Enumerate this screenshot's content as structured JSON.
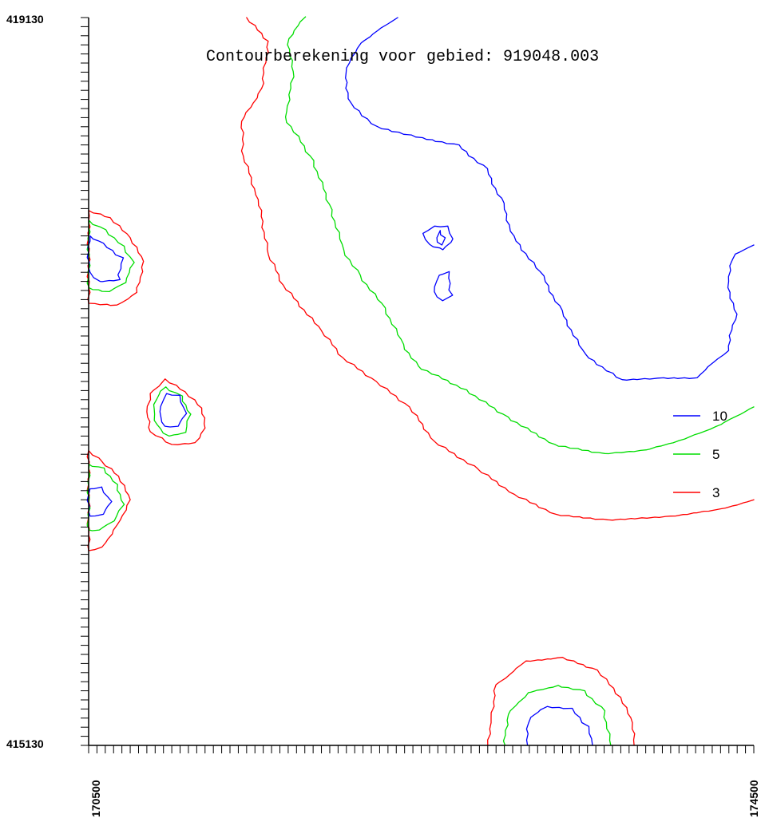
{
  "chart_data": {
    "type": "contour",
    "title": "Contourberekening voor gebied: 919048.003",
    "x_axis": {
      "min": 170500,
      "max": 174500,
      "tick_labels": [
        "170500",
        "174500"
      ],
      "minor_tick_step": 50
    },
    "y_axis": {
      "min": 415130,
      "max": 419130,
      "tick_labels": [
        "419130",
        "415130"
      ],
      "minor_tick_step": 50
    },
    "legend_position": "right",
    "levels": [
      {
        "value": "10",
        "color": "#0000ff"
      },
      {
        "value": "5",
        "color": "#00dd00"
      },
      {
        "value": "3",
        "color": "#ff0000"
      }
    ],
    "contours": [
      {
        "level": "3",
        "closed": false,
        "points": [
          [
            171450,
            419130
          ],
          [
            171580,
            419000
          ],
          [
            171540,
            418740
          ],
          [
            171420,
            418560
          ],
          [
            171430,
            418370
          ],
          [
            171520,
            418130
          ],
          [
            171580,
            417830
          ],
          [
            171670,
            417660
          ],
          [
            171900,
            417410
          ],
          [
            172030,
            417260
          ],
          [
            172230,
            417130
          ],
          [
            172430,
            416990
          ],
          [
            172580,
            416800
          ],
          [
            172840,
            416650
          ],
          [
            173060,
            416510
          ],
          [
            173310,
            416400
          ],
          [
            173620,
            416370
          ],
          [
            174000,
            416390
          ],
          [
            174300,
            416430
          ],
          [
            174500,
            416480
          ]
        ]
      },
      {
        "level": "5",
        "closed": false,
        "points": [
          [
            171800,
            419130
          ],
          [
            171700,
            419010
          ],
          [
            171730,
            418800
          ],
          [
            171680,
            418580
          ],
          [
            171850,
            418340
          ],
          [
            171960,
            418070
          ],
          [
            172030,
            417850
          ],
          [
            172130,
            417710
          ],
          [
            172280,
            417530
          ],
          [
            172390,
            417330
          ],
          [
            172480,
            417210
          ],
          [
            172770,
            417080
          ],
          [
            173020,
            416930
          ],
          [
            173300,
            416780
          ],
          [
            173600,
            416730
          ],
          [
            173850,
            416750
          ],
          [
            174080,
            416810
          ],
          [
            174300,
            416890
          ],
          [
            174500,
            416990
          ]
        ]
      },
      {
        "level": "10",
        "closed": false,
        "points": [
          [
            172350,
            419130
          ],
          [
            172130,
            418990
          ],
          [
            172040,
            418830
          ],
          [
            172070,
            418660
          ],
          [
            172230,
            418530
          ],
          [
            172500,
            418470
          ],
          [
            172720,
            418430
          ],
          [
            172890,
            418300
          ],
          [
            172990,
            418110
          ],
          [
            173050,
            417930
          ],
          [
            173230,
            417710
          ],
          [
            173340,
            417520
          ],
          [
            173480,
            417280
          ],
          [
            173700,
            417140
          ],
          [
            173950,
            417150
          ],
          [
            174150,
            417150
          ],
          [
            174340,
            417300
          ],
          [
            174390,
            417500
          ],
          [
            174340,
            417680
          ],
          [
            174380,
            417830
          ],
          [
            174500,
            417880
          ]
        ]
      },
      {
        "level": "10",
        "closed": true,
        "points": [
          [
            172550,
            417880
          ],
          [
            172630,
            417850
          ],
          [
            172690,
            417910
          ],
          [
            172660,
            417980
          ],
          [
            172580,
            417980
          ],
          [
            172510,
            417940
          ]
        ]
      },
      {
        "level": "10",
        "closed": true,
        "points": [
          [
            172590,
            417920
          ],
          [
            172620,
            417880
          ],
          [
            172640,
            417920
          ],
          [
            172610,
            417960
          ]
        ]
      },
      {
        "level": "10",
        "closed": true,
        "points": [
          [
            172600,
            417710
          ],
          [
            172660,
            417730
          ],
          [
            172680,
            417600
          ],
          [
            172620,
            417570
          ],
          [
            172570,
            417620
          ]
        ]
      },
      {
        "level": "3",
        "closed": true,
        "points": [
          [
            170500,
            418070
          ],
          [
            170630,
            418030
          ],
          [
            170750,
            417920
          ],
          [
            170830,
            417790
          ],
          [
            170790,
            417620
          ],
          [
            170670,
            417550
          ],
          [
            170500,
            417560
          ]
        ]
      },
      {
        "level": "5",
        "closed": true,
        "points": [
          [
            170500,
            418010
          ],
          [
            170600,
            417960
          ],
          [
            170710,
            417870
          ],
          [
            170770,
            417780
          ],
          [
            170720,
            417670
          ],
          [
            170620,
            417620
          ],
          [
            170500,
            417640
          ]
        ]
      },
      {
        "level": "10",
        "closed": true,
        "points": [
          [
            170500,
            417930
          ],
          [
            170580,
            417890
          ],
          [
            170700,
            417810
          ],
          [
            170680,
            417690
          ],
          [
            170560,
            417680
          ],
          [
            170500,
            417730
          ]
        ]
      },
      {
        "level": "3",
        "closed": true,
        "points": [
          [
            170960,
            417140
          ],
          [
            171080,
            417070
          ],
          [
            171180,
            416980
          ],
          [
            171200,
            416870
          ],
          [
            171140,
            416790
          ],
          [
            171000,
            416780
          ],
          [
            170870,
            416850
          ],
          [
            170850,
            416960
          ],
          [
            170870,
            417060
          ]
        ]
      },
      {
        "level": "5",
        "closed": true,
        "points": [
          [
            170960,
            417100
          ],
          [
            171060,
            417050
          ],
          [
            171110,
            416950
          ],
          [
            171080,
            416850
          ],
          [
            170980,
            416830
          ],
          [
            170910,
            416890
          ],
          [
            170890,
            416980
          ],
          [
            170920,
            417060
          ]
        ]
      },
      {
        "level": "10",
        "closed": true,
        "points": [
          [
            170960,
            417060
          ],
          [
            171040,
            417050
          ],
          [
            171080,
            416950
          ],
          [
            171030,
            416880
          ],
          [
            170950,
            416880
          ],
          [
            170920,
            416960
          ]
        ]
      },
      {
        "level": "3",
        "closed": true,
        "points": [
          [
            170500,
            416750
          ],
          [
            170580,
            416690
          ],
          [
            170680,
            416610
          ],
          [
            170750,
            416480
          ],
          [
            170670,
            416340
          ],
          [
            170580,
            416220
          ],
          [
            170500,
            416200
          ]
        ]
      },
      {
        "level": "5",
        "closed": true,
        "points": [
          [
            170500,
            416670
          ],
          [
            170590,
            416650
          ],
          [
            170670,
            416560
          ],
          [
            170710,
            416450
          ],
          [
            170650,
            416360
          ],
          [
            170560,
            416310
          ],
          [
            170500,
            416310
          ]
        ]
      },
      {
        "level": "10",
        "closed": true,
        "points": [
          [
            170500,
            416540
          ],
          [
            170570,
            416550
          ],
          [
            170630,
            416470
          ],
          [
            170580,
            416400
          ],
          [
            170500,
            416390
          ]
        ]
      },
      {
        "level": "3",
        "closed": false,
        "points": [
          [
            172900,
            415130
          ],
          [
            172920,
            415280
          ],
          [
            172950,
            415460
          ],
          [
            173130,
            415590
          ],
          [
            173350,
            415610
          ],
          [
            173560,
            415540
          ],
          [
            173700,
            415390
          ],
          [
            173770,
            415250
          ],
          [
            173780,
            415130
          ]
        ]
      },
      {
        "level": "5",
        "closed": false,
        "points": [
          [
            173000,
            415130
          ],
          [
            173020,
            415300
          ],
          [
            173140,
            415420
          ],
          [
            173320,
            415460
          ],
          [
            173480,
            415430
          ],
          [
            173600,
            415320
          ],
          [
            173640,
            415130
          ]
        ]
      },
      {
        "level": "10",
        "closed": false,
        "points": [
          [
            173130,
            415130
          ],
          [
            173150,
            415280
          ],
          [
            173250,
            415340
          ],
          [
            173400,
            415330
          ],
          [
            173500,
            415230
          ],
          [
            173530,
            415130
          ]
        ]
      }
    ]
  }
}
